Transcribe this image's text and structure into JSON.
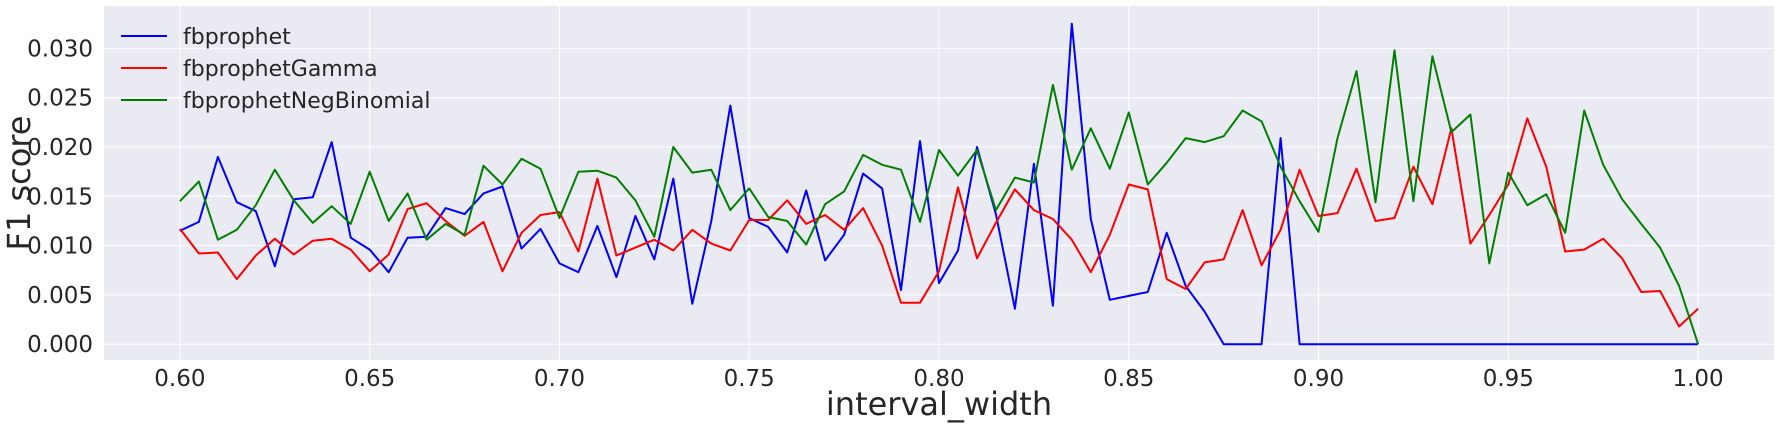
{
  "chart_data": {
    "type": "line",
    "xlabel": "interval_width",
    "ylabel": "F1 score",
    "xlim": [
      0.58,
      1.02
    ],
    "ylim": [
      -0.0016,
      0.0343
    ],
    "x_ticks": [
      "0.60",
      "0.65",
      "0.70",
      "0.75",
      "0.80",
      "0.85",
      "0.90",
      "0.95",
      "1.00"
    ],
    "y_ticks": [
      "0.000",
      "0.005",
      "0.010",
      "0.015",
      "0.020",
      "0.025",
      "0.030"
    ],
    "grid": true,
    "legend_position": "top-left",
    "x": [
      0.6,
      0.605,
      0.61,
      0.615,
      0.62,
      0.625,
      0.63,
      0.635,
      0.64,
      0.645,
      0.65,
      0.655,
      0.66,
      0.665,
      0.67,
      0.675,
      0.68,
      0.685,
      0.69,
      0.695,
      0.7,
      0.705,
      0.71,
      0.715,
      0.72,
      0.725,
      0.73,
      0.735,
      0.74,
      0.745,
      0.75,
      0.755,
      0.76,
      0.765,
      0.77,
      0.775,
      0.78,
      0.785,
      0.79,
      0.795,
      0.8,
      0.805,
      0.81,
      0.815,
      0.82,
      0.825,
      0.83,
      0.835,
      0.84,
      0.845,
      0.85,
      0.855,
      0.86,
      0.865,
      0.87,
      0.875,
      0.88,
      0.885,
      0.89,
      0.895,
      0.9,
      0.905,
      0.91,
      0.915,
      0.92,
      0.925,
      0.93,
      0.935,
      0.94,
      0.945,
      0.95,
      0.955,
      0.96,
      0.965,
      0.97,
      0.975,
      0.98,
      0.985,
      0.99,
      0.995,
      1.0
    ],
    "series": [
      {
        "name": "fbprophet",
        "color": "#0000ff",
        "values": [
          0.0115,
          0.0124,
          0.019,
          0.0144,
          0.0135,
          0.0079,
          0.0147,
          0.0149,
          0.0205,
          0.0108,
          0.0096,
          0.0073,
          0.0108,
          0.0109,
          0.0138,
          0.0132,
          0.0153,
          0.016,
          0.0097,
          0.0117,
          0.0082,
          0.0073,
          0.012,
          0.0068,
          0.013,
          0.0086,
          0.0168,
          0.0041,
          0.0125,
          0.0242,
          0.0128,
          0.0119,
          0.0093,
          0.0156,
          0.0085,
          0.0111,
          0.0173,
          0.0158,
          0.0055,
          0.0206,
          0.0062,
          0.0095,
          0.02,
          0.0132,
          0.0036,
          0.0183,
          0.0039,
          0.0325,
          0.0127,
          0.0045,
          0.0049,
          0.0053,
          0.0113,
          0.0059,
          0.0033,
          0.0,
          0.0,
          0.0,
          0.0209,
          0.0,
          0.0,
          0.0,
          0.0,
          0.0,
          0.0,
          0.0,
          0.0,
          0.0,
          0.0,
          0.0,
          0.0,
          0.0,
          0.0,
          0.0,
          0.0,
          0.0,
          0.0,
          0.0,
          0.0,
          0.0,
          0.0
        ]
      },
      {
        "name": "fbprophetGamma",
        "color": "#ff0000",
        "values": [
          0.0117,
          0.0092,
          0.0093,
          0.0066,
          0.009,
          0.0107,
          0.0091,
          0.0105,
          0.0107,
          0.0096,
          0.0074,
          0.0091,
          0.0137,
          0.0143,
          0.0125,
          0.011,
          0.0124,
          0.0074,
          0.0113,
          0.0131,
          0.0134,
          0.0094,
          0.0168,
          0.009,
          0.0098,
          0.0106,
          0.0095,
          0.0116,
          0.0102,
          0.0095,
          0.0126,
          0.0126,
          0.0146,
          0.0122,
          0.0131,
          0.0116,
          0.0138,
          0.01,
          0.0042,
          0.0042,
          0.0074,
          0.0159,
          0.0087,
          0.0123,
          0.0157,
          0.0136,
          0.0127,
          0.0106,
          0.0073,
          0.0111,
          0.0162,
          0.0157,
          0.0066,
          0.0056,
          0.0083,
          0.0086,
          0.0136,
          0.008,
          0.0116,
          0.0177,
          0.013,
          0.0133,
          0.0178,
          0.0125,
          0.0128,
          0.018,
          0.0142,
          0.0219,
          0.0102,
          0.0131,
          0.0162,
          0.0229,
          0.018,
          0.0094,
          0.0096,
          0.0107,
          0.0087,
          0.0053,
          0.0054,
          0.0018,
          0.0036
        ]
      },
      {
        "name": "fbprophetNegBinomial",
        "color": "#008000",
        "values": [
          0.0145,
          0.0165,
          0.0106,
          0.0116,
          0.0141,
          0.0177,
          0.0146,
          0.0123,
          0.014,
          0.0122,
          0.0175,
          0.0125,
          0.0153,
          0.0106,
          0.0122,
          0.0111,
          0.0181,
          0.0162,
          0.0188,
          0.0178,
          0.0128,
          0.0175,
          0.0176,
          0.0169,
          0.0146,
          0.0109,
          0.02,
          0.0174,
          0.0177,
          0.0136,
          0.0158,
          0.0129,
          0.0125,
          0.0101,
          0.0142,
          0.0155,
          0.0192,
          0.0182,
          0.0177,
          0.0124,
          0.0197,
          0.0171,
          0.0197,
          0.0136,
          0.0169,
          0.0164,
          0.0263,
          0.0177,
          0.0219,
          0.0178,
          0.0235,
          0.0162,
          0.0184,
          0.0209,
          0.0205,
          0.0211,
          0.0237,
          0.0226,
          0.018,
          0.0145,
          0.0114,
          0.0209,
          0.0277,
          0.0144,
          0.0298,
          0.0145,
          0.0292,
          0.0215,
          0.0233,
          0.0082,
          0.0174,
          0.0141,
          0.0152,
          0.0113,
          0.0237,
          0.0182,
          0.0147,
          0.0122,
          0.0098,
          0.0059,
          0.0
        ]
      }
    ]
  },
  "colors": {
    "axes_background": "#eaeaf2",
    "grid": "#ffffff",
    "text": "#262626"
  }
}
